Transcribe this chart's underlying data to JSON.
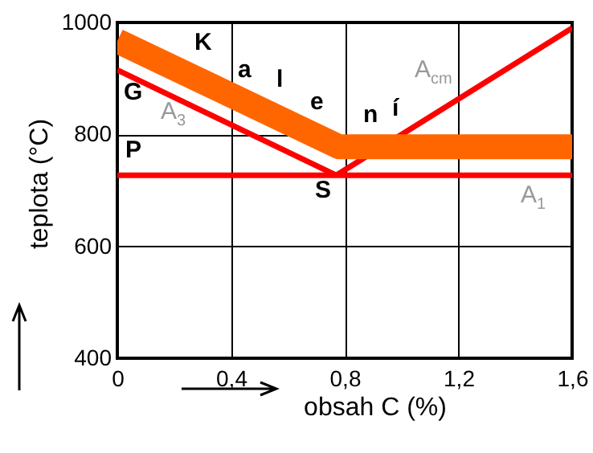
{
  "chart_data": {
    "type": "line",
    "xlabel": "obsah C (%)",
    "ylabel": "teplota (°C)",
    "xlim": [
      0,
      1.6
    ],
    "xticks": [
      0,
      {
        "value": 0.4,
        "label": "0,4"
      },
      {
        "value": 0.8,
        "label": "0,8"
      },
      {
        "value": 1.2,
        "label": "1,2"
      },
      {
        "value": 1.6,
        "label": "1,6"
      }
    ],
    "ylim": [
      400,
      1000
    ],
    "yticks": [
      400,
      600,
      800,
      1000
    ],
    "grid": true,
    "series": [
      {
        "color": "#ff0000",
        "x": [
          0,
          0.77
        ],
        "values": [
          915,
          727
        ]
      },
      {
        "color": "#ff0000",
        "x": [
          0,
          1.6
        ],
        "values": [
          727,
          727
        ]
      },
      {
        "color": "#ff0000",
        "x": [
          0.77,
          1.6
        ],
        "values": [
          727,
          990
        ]
      },
      {
        "color": "#ff6600",
        "x": [
          0,
          0.78,
          1.6
        ],
        "values": [
          967,
          778,
          778
        ]
      }
    ],
    "annotations": [
      "G",
      "P",
      "S",
      "K",
      "a",
      "l",
      "e",
      "n",
      "í",
      "A$_{3}$",
      "A$_{cm}$",
      "A$_{1}$"
    ]
  }
}
